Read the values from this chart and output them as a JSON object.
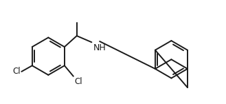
{
  "bg": "#ffffff",
  "lc": "#1a1a1a",
  "nh_c": "#1a1a1a",
  "lw": 1.4,
  "fs": 8.5,
  "xlim": [
    0.0,
    10.2
  ],
  "ylim": [
    0.8,
    5.6
  ]
}
